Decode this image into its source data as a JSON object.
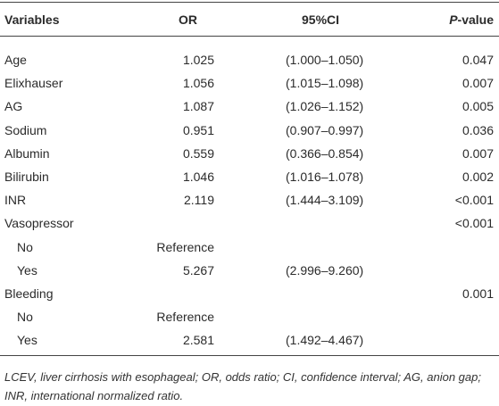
{
  "table": {
    "headers": [
      "Variables",
      "OR",
      "95%CI",
      "P-value"
    ],
    "rows": [
      {
        "label": "Age",
        "or": "1.025",
        "ci": "(1.000–1.050)",
        "p": "0.047"
      },
      {
        "label": "Elixhauser",
        "or": "1.056",
        "ci": "(1.015–1.098)",
        "p": "0.007"
      },
      {
        "label": "AG",
        "or": "1.087",
        "ci": "(1.026–1.152)",
        "p": "0.005"
      },
      {
        "label": "Sodium",
        "or": "0.951",
        "ci": "(0.907–0.997)",
        "p": "0.036"
      },
      {
        "label": "Albumin",
        "or": "0.559",
        "ci": "(0.366–0.854)",
        "p": "0.007"
      },
      {
        "label": "Bilirubin",
        "or": "1.046",
        "ci": "(1.016–1.078)",
        "p": "0.002"
      },
      {
        "label": "INR",
        "or": "2.119",
        "ci": "(1.444–3.109)",
        "p": "<0.001"
      },
      {
        "label": "Vasopressor",
        "p": "<0.001",
        "levels": [
          {
            "label": "No",
            "or": "Reference"
          },
          {
            "label": "Yes",
            "or": "5.267",
            "ci": "(2.996–9.260)"
          }
        ]
      },
      {
        "label": "Bleeding",
        "p": "0.001",
        "levels": [
          {
            "label": "No",
            "or": "Reference"
          },
          {
            "label": "Yes",
            "or": "2.581",
            "ci": "(1.492–4.467)"
          }
        ]
      }
    ],
    "footnote": "LCEV, liver cirrhosis with esophageal; OR, odds ratio; CI, confidence interval; AG, anion gap; INR, international normalized ratio."
  }
}
